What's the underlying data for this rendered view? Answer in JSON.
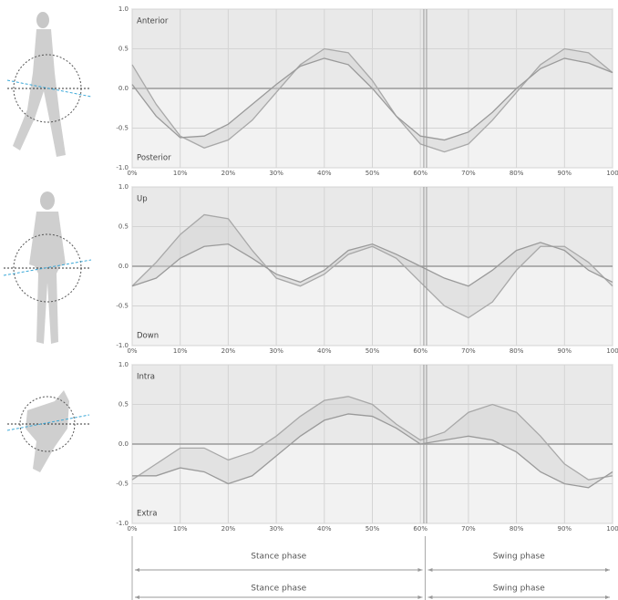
{
  "charts": [
    {
      "chart_data": {
        "type": "line",
        "top_label": "Anterior",
        "bottom_label": "Posterior",
        "x": [
          0,
          5,
          10,
          15,
          20,
          25,
          30,
          35,
          40,
          45,
          50,
          55,
          60,
          65,
          70,
          75,
          80,
          85,
          90,
          95,
          100
        ],
        "series": [
          {
            "color": "#a8a8a8",
            "values": [
              0.3,
              -0.2,
              -0.6,
              -0.75,
              -0.65,
              -0.4,
              -0.05,
              0.3,
              0.5,
              0.45,
              0.1,
              -0.35,
              -0.7,
              -0.8,
              -0.7,
              -0.4,
              -0.05,
              0.3,
              0.5,
              0.45,
              0.2
            ]
          },
          {
            "color": "#9a9a9a",
            "values": [
              0.05,
              -0.35,
              -0.62,
              -0.6,
              -0.45,
              -0.2,
              0.05,
              0.28,
              0.38,
              0.3,
              0.0,
              -0.35,
              -0.6,
              -0.65,
              -0.55,
              -0.3,
              0.0,
              0.25,
              0.38,
              0.32,
              0.2
            ]
          }
        ],
        "xlim": [
          0,
          100
        ],
        "ylim": [
          -1,
          1
        ],
        "vline": 61,
        "grid": true,
        "xticks": [
          {
            "value": 0,
            "label": "0%"
          },
          {
            "value": 10,
            "label": "10%"
          },
          {
            "value": 20,
            "label": "20%"
          },
          {
            "value": 30,
            "label": "30%"
          },
          {
            "value": 40,
            "label": "40%"
          },
          {
            "value": 50,
            "label": "50%"
          },
          {
            "value": 60,
            "label": "60%"
          },
          {
            "value": 70,
            "label": "70%"
          },
          {
            "value": 80,
            "label": "80%"
          },
          {
            "value": 90,
            "label": "90%"
          },
          {
            "value": 100,
            "label": "100"
          }
        ],
        "yticks": [
          {
            "value": -1,
            "label": "-1.0"
          },
          {
            "value": -0.5,
            "label": "-0.5"
          },
          {
            "value": 0,
            "label": "0.0"
          },
          {
            "value": 0.5,
            "label": "0.5"
          },
          {
            "value": 1,
            "label": "1.0"
          }
        ]
      }
    },
    {
      "chart_data": {
        "type": "line",
        "top_label": "Up",
        "bottom_label": "Down",
        "x": [
          0,
          5,
          10,
          15,
          20,
          25,
          30,
          35,
          40,
          45,
          50,
          55,
          60,
          65,
          70,
          75,
          80,
          85,
          90,
          95,
          100
        ],
        "series": [
          {
            "color": "#a8a8a8",
            "values": [
              -0.25,
              0.05,
              0.4,
              0.65,
              0.6,
              0.2,
              -0.15,
              -0.25,
              -0.1,
              0.15,
              0.25,
              0.1,
              -0.2,
              -0.5,
              -0.65,
              -0.45,
              -0.05,
              0.25,
              0.25,
              0.05,
              -0.25
            ]
          },
          {
            "color": "#9a9a9a",
            "values": [
              -0.25,
              -0.15,
              0.1,
              0.25,
              0.28,
              0.1,
              -0.1,
              -0.2,
              -0.05,
              0.2,
              0.28,
              0.15,
              0.0,
              -0.15,
              -0.25,
              -0.05,
              0.2,
              0.3,
              0.2,
              -0.05,
              -0.2
            ]
          }
        ],
        "xlim": [
          0,
          100
        ],
        "ylim": [
          -1,
          1
        ],
        "vline": 61,
        "grid": true,
        "xticks": [
          {
            "value": 0,
            "label": "0%"
          },
          {
            "value": 10,
            "label": "10%"
          },
          {
            "value": 20,
            "label": "20%"
          },
          {
            "value": 30,
            "label": "30%"
          },
          {
            "value": 40,
            "label": "40%"
          },
          {
            "value": 50,
            "label": "50%"
          },
          {
            "value": 60,
            "label": "60%"
          },
          {
            "value": 70,
            "label": "70%"
          },
          {
            "value": 80,
            "label": "80%"
          },
          {
            "value": 90,
            "label": "90%"
          },
          {
            "value": 100,
            "label": "100"
          }
        ],
        "yticks": [
          {
            "value": -1,
            "label": "-1.0"
          },
          {
            "value": -0.5,
            "label": "-0.5"
          },
          {
            "value": 0,
            "label": "0.0"
          },
          {
            "value": 0.5,
            "label": "0.5"
          },
          {
            "value": 1,
            "label": "1.0"
          }
        ]
      }
    },
    {
      "chart_data": {
        "type": "line",
        "top_label": "Intra",
        "bottom_label": "Extra",
        "x": [
          0,
          5,
          10,
          15,
          20,
          25,
          30,
          35,
          40,
          45,
          50,
          55,
          60,
          65,
          70,
          75,
          80,
          85,
          90,
          95,
          100
        ],
        "series": [
          {
            "color": "#a8a8a8",
            "values": [
              -0.45,
              -0.25,
              -0.05,
              -0.05,
              -0.2,
              -0.1,
              0.1,
              0.35,
              0.55,
              0.6,
              0.5,
              0.25,
              0.05,
              0.15,
              0.4,
              0.5,
              0.4,
              0.1,
              -0.25,
              -0.45,
              -0.4
            ]
          },
          {
            "color": "#9a9a9a",
            "values": [
              -0.4,
              -0.4,
              -0.3,
              -0.35,
              -0.5,
              -0.4,
              -0.15,
              0.1,
              0.3,
              0.38,
              0.35,
              0.2,
              0.0,
              0.05,
              0.1,
              0.05,
              -0.1,
              -0.35,
              -0.5,
              -0.55,
              -0.35
            ]
          }
        ],
        "xlim": [
          0,
          100
        ],
        "ylim": [
          -1,
          1
        ],
        "vline": 61,
        "grid": true,
        "xticks": [
          {
            "value": 0,
            "label": "0%"
          },
          {
            "value": 10,
            "label": "10%"
          },
          {
            "value": 20,
            "label": "20%"
          },
          {
            "value": 30,
            "label": "30%"
          },
          {
            "value": 40,
            "label": "40%"
          },
          {
            "value": 50,
            "label": "50%"
          },
          {
            "value": 60,
            "label": "60%"
          },
          {
            "value": 70,
            "label": "70%"
          },
          {
            "value": 80,
            "label": "80%"
          },
          {
            "value": 90,
            "label": "90%"
          },
          {
            "value": 100,
            "label": "100"
          }
        ],
        "yticks": [
          {
            "value": -1,
            "label": "-1.0"
          },
          {
            "value": -0.5,
            "label": "-0.5"
          },
          {
            "value": 0,
            "label": "0.0"
          },
          {
            "value": 0.5,
            "label": "0.5"
          },
          {
            "value": 1,
            "label": "1.0"
          }
        ]
      }
    }
  ],
  "phase_rows": [
    [
      "Stance phase",
      "Swing phase"
    ],
    [
      "Stance phase",
      "Swing phase"
    ]
  ]
}
